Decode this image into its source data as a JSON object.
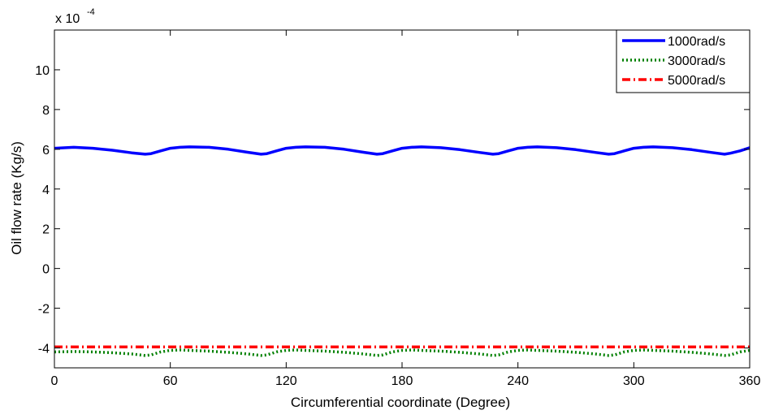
{
  "chart_data": {
    "type": "line",
    "title": "",
    "xlabel": "Circumferential coordinate (Degree)",
    "ylabel": "Oil flow rate (Kg/s)",
    "y_multiplier_label": "x 10",
    "y_multiplier_exponent": "-4",
    "xlim": [
      0,
      360
    ],
    "ylim": [
      -5,
      12
    ],
    "x_ticks": [
      0,
      60,
      120,
      180,
      240,
      300,
      360
    ],
    "y_ticks": [
      -4,
      -2,
      0,
      2,
      4,
      6,
      8,
      10
    ],
    "grid": false,
    "legend_position": "top-right",
    "series": [
      {
        "name": "1000rad/s",
        "color": "#0000ff",
        "style": "solid",
        "x": [
          0,
          10,
          20,
          30,
          40,
          47,
          50,
          55,
          60,
          65,
          70,
          80,
          90,
          100,
          107,
          110,
          115,
          120,
          125,
          130,
          140,
          150,
          160,
          167,
          170,
          175,
          180,
          185,
          190,
          200,
          210,
          220,
          227,
          230,
          235,
          240,
          245,
          250,
          260,
          270,
          280,
          287,
          290,
          295,
          300,
          305,
          310,
          320,
          330,
          340,
          347,
          350,
          355,
          360
        ],
        "values": [
          6.05,
          6.1,
          6.05,
          5.95,
          5.82,
          5.75,
          5.78,
          5.92,
          6.05,
          6.1,
          6.12,
          6.1,
          6.0,
          5.85,
          5.75,
          5.78,
          5.92,
          6.05,
          6.1,
          6.12,
          6.1,
          6.0,
          5.85,
          5.75,
          5.78,
          5.92,
          6.05,
          6.1,
          6.12,
          6.08,
          5.98,
          5.84,
          5.75,
          5.78,
          5.92,
          6.05,
          6.1,
          6.12,
          6.08,
          5.98,
          5.84,
          5.75,
          5.78,
          5.92,
          6.05,
          6.1,
          6.12,
          6.08,
          5.98,
          5.84,
          5.75,
          5.8,
          5.92,
          6.08
        ]
      },
      {
        "name": "3000rad/s",
        "color": "#008000",
        "style": "dotted",
        "x": [
          0,
          10,
          20,
          30,
          40,
          47,
          50,
          55,
          60,
          65,
          70,
          80,
          90,
          100,
          107,
          110,
          115,
          120,
          125,
          130,
          140,
          150,
          160,
          167,
          170,
          175,
          180,
          185,
          190,
          200,
          210,
          220,
          227,
          230,
          235,
          240,
          245,
          250,
          260,
          270,
          280,
          287,
          290,
          295,
          300,
          305,
          310,
          320,
          330,
          340,
          347,
          350,
          355,
          360
        ],
        "values": [
          -4.2,
          -4.18,
          -4.2,
          -4.24,
          -4.3,
          -4.38,
          -4.35,
          -4.2,
          -4.12,
          -4.1,
          -4.12,
          -4.16,
          -4.22,
          -4.3,
          -4.38,
          -4.35,
          -4.2,
          -4.12,
          -4.1,
          -4.12,
          -4.16,
          -4.22,
          -4.3,
          -4.38,
          -4.35,
          -4.2,
          -4.12,
          -4.1,
          -4.12,
          -4.16,
          -4.22,
          -4.3,
          -4.38,
          -4.35,
          -4.2,
          -4.12,
          -4.1,
          -4.12,
          -4.16,
          -4.22,
          -4.3,
          -4.38,
          -4.35,
          -4.2,
          -4.12,
          -4.1,
          -4.12,
          -4.16,
          -4.22,
          -4.3,
          -4.38,
          -4.35,
          -4.2,
          -4.12
        ]
      },
      {
        "name": "5000rad/s",
        "color": "#ff0000",
        "style": "dashdot",
        "x": [
          0,
          360
        ],
        "values": [
          -3.95,
          -3.95
        ]
      }
    ]
  }
}
